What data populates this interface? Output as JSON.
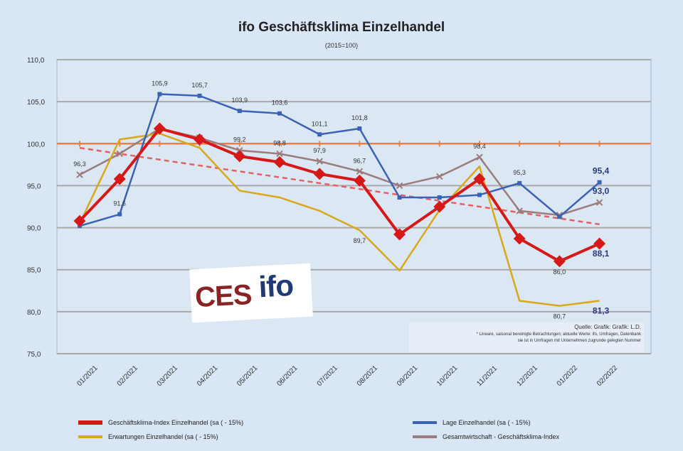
{
  "chart_data": {
    "type": "line",
    "title": "ifo Geschäftsklima Einzelhandel",
    "subtitle": "(2015=100)",
    "xlabel": "",
    "ylabel": "",
    "ylim": [
      75,
      110
    ],
    "yticks": [
      "75,0",
      "80,0",
      "85,0",
      "90,0",
      "95,0",
      "100,0",
      "105,0",
      "110,0"
    ],
    "ytick_values": [
      75,
      80,
      85,
      90,
      95,
      100,
      105,
      110
    ],
    "grid": true,
    "reference_line": {
      "value": 100,
      "color": "#e8824a"
    },
    "categories": [
      "01/2021",
      "02/2021",
      "03/2021",
      "04/2021",
      "05/2021",
      "06/2021",
      "07/2021",
      "08/2021",
      "09/2021",
      "10/2021",
      "11/2021",
      "12/2021",
      "01/2022",
      "02/2022"
    ],
    "series": [
      {
        "name": "Geschäftsklima-Index Einzelhandel (sa ( - 15%)",
        "color": "#d61818",
        "values": [
          90.8,
          95.8,
          101.8,
          100.5,
          98.5,
          97.8,
          96.4,
          95.6,
          89.2,
          92.5,
          95.8,
          88.7,
          86.0,
          88.1
        ],
        "labels": [
          "",
          "",
          "",
          "",
          "",
          "",
          "",
          "",
          "",
          "",
          "",
          "",
          "86,0",
          "88,1"
        ]
      },
      {
        "name": "Lage Einzelhandel (sa ( - 15%)",
        "color": "#3a62b5",
        "values": [
          90.2,
          91.6,
          105.9,
          105.7,
          103.9,
          103.6,
          101.1,
          101.8,
          93.6,
          93.6,
          93.9,
          95.3,
          91.3,
          95.4
        ],
        "labels": [
          "",
          "91,6",
          "105,9",
          "105,7",
          "103,9",
          "103,6",
          "101,1",
          "101,8",
          "",
          "",
          "",
          "95,3",
          "",
          "95,4"
        ]
      },
      {
        "name": "Erwartungen Einzelhandel (sa ( - 15%)",
        "color": "#d9a818",
        "values": [
          90.5,
          100.5,
          101.2,
          99.5,
          94.4,
          93.6,
          92.0,
          89.7,
          84.9,
          92.1,
          97.3,
          81.3,
          80.7,
          81.3
        ],
        "labels": [
          "",
          "",
          "",
          "",
          "",
          "",
          "",
          "89,7",
          "",
          "",
          "",
          "",
          "80,7",
          "81,3"
        ]
      },
      {
        "name": "Gesamtwirtschaft - Geschäftsklima-Index",
        "color": "#9b7b7c",
        "values": [
          96.3,
          98.8,
          101.8,
          100.7,
          99.2,
          98.8,
          97.9,
          96.7,
          95.0,
          96.1,
          98.4,
          92.0,
          91.5,
          93.0
        ],
        "labels": [
          "96,3",
          "",
          "",
          "",
          "99,2",
          "98,8",
          "97,9",
          "96,7",
          "",
          "",
          "98,4",
          "",
          "",
          "93,0"
        ]
      },
      {
        "name": "Trend",
        "color": "#e36060",
        "values": [
          99.5,
          98.8,
          98.1,
          97.4,
          96.7,
          96.0,
          95.3,
          94.6,
          93.9,
          93.2,
          92.5,
          91.8,
          91.1,
          90.4
        ],
        "labels": []
      }
    ]
  },
  "logo": {
    "ces": "CES",
    "ifo": "ifo"
  },
  "source": {
    "line1": "Quelle: Grafik: Grafik: L.D.",
    "line2": "* Lineare, saisonal bereinigte Betrachtungen; aktuelle Werte: ifo, Umfragen, Datenbank",
    "line3": "sie ist in Umfragen mit Unternehmen zugrunde gelegten Nummer"
  },
  "legend": {
    "items": [
      {
        "label": "Geschäftsklima-Index Einzelhandel (sa ( - 15%)",
        "color": "#d61818"
      },
      {
        "label": "Lage Einzelhandel (sa ( - 15%)",
        "color": "#3a62b5"
      },
      {
        "label": "Erwartungen Einzelhandel (sa ( - 15%)",
        "color": "#d9a818"
      },
      {
        "label": "Gesamtwirtschaft - Geschäftsklima-Index",
        "color": "#9b7b7c"
      }
    ]
  }
}
